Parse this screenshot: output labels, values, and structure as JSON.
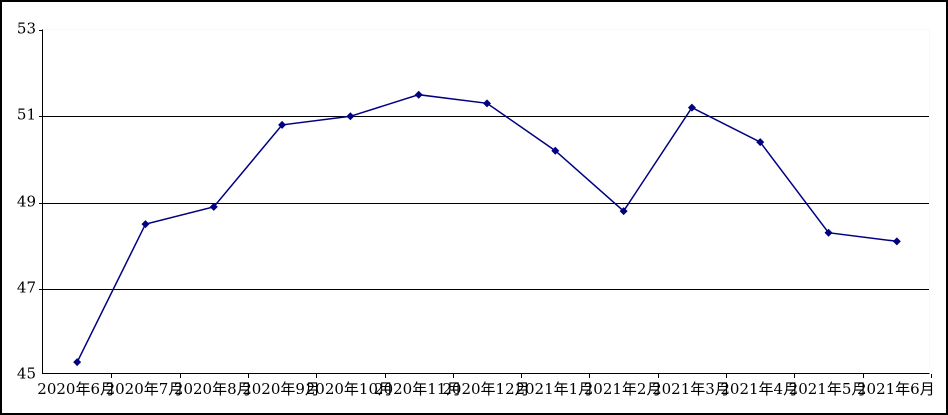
{
  "chart_data": {
    "type": "line",
    "title": "",
    "xlabel": "",
    "ylabel": "",
    "categories": [
      "2020年6月",
      "2020年7月",
      "2020年8月",
      "2020年9月",
      "2020年10月",
      "2020年11月",
      "2020年12月",
      "2021年1月",
      "2021年2月",
      "2021年3月",
      "2021年4月",
      "2021年5月",
      "2021年6月"
    ],
    "values": [
      45.3,
      48.5,
      48.9,
      50.8,
      51.0,
      51.5,
      51.3,
      50.2,
      48.8,
      51.2,
      50.4,
      48.3,
      48.1
    ],
    "ylim": [
      45,
      53
    ],
    "yticks": [
      45,
      47,
      49,
      51,
      53
    ],
    "ytick_labels": [
      "45",
      "47",
      "49",
      "51",
      "53"
    ],
    "grid": true,
    "legend": false,
    "line_color": "#000080",
    "marker": "diamond",
    "marker_color": "#000080",
    "gridline_color": "#000000",
    "axis_color": "#000000",
    "plot_border_color": "#ffffcc",
    "background_color": "#ffffff"
  }
}
